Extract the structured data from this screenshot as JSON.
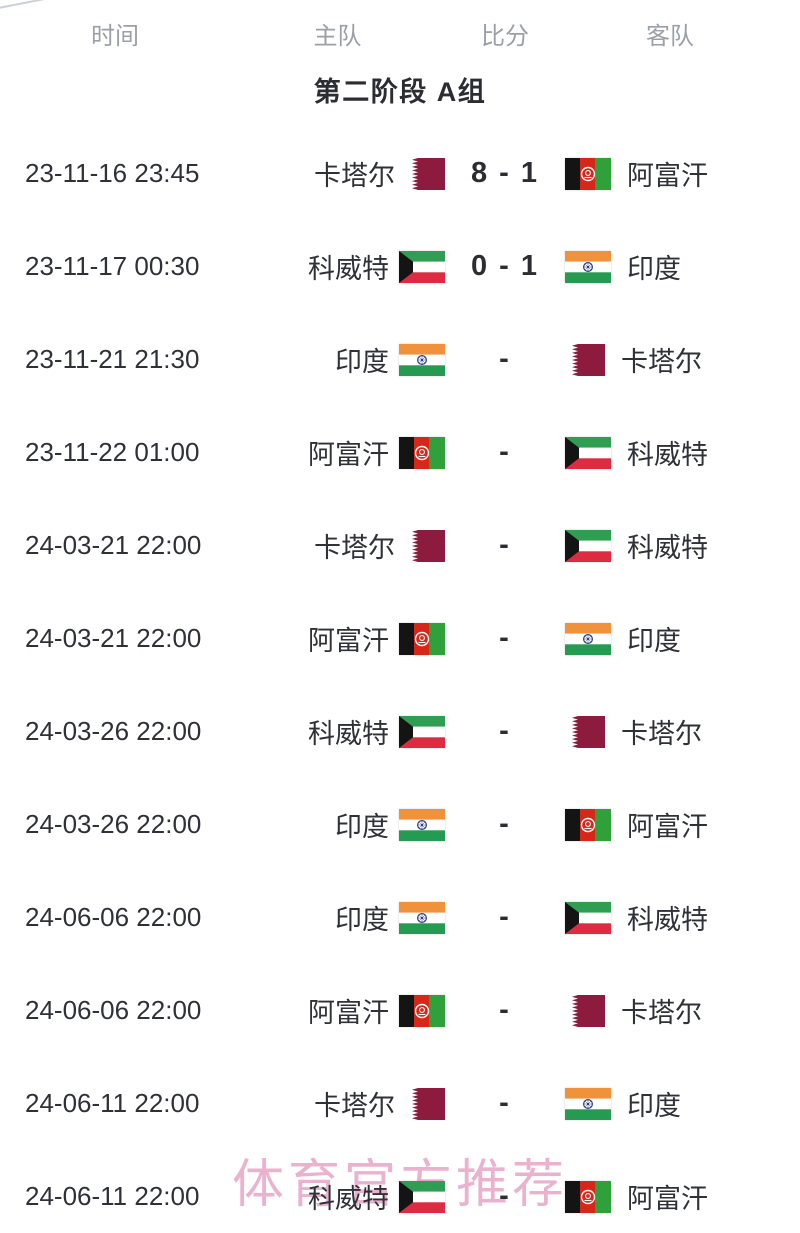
{
  "header": {
    "columns": [
      "时间",
      "主队",
      "比分",
      "客队"
    ]
  },
  "group_title": "第二阶段 A组",
  "watermark": "体育官方推荐",
  "teams": {
    "qatar": {
      "label": "卡塔尔",
      "flag": "qa"
    },
    "afghanistan": {
      "label": "阿富汗",
      "flag": "af"
    },
    "kuwait": {
      "label": "科威特",
      "flag": "kw"
    },
    "india": {
      "label": "印度",
      "flag": "in"
    }
  },
  "fixtures": [
    {
      "time": "23-11-16 23:45",
      "home": "qatar",
      "away": "afghanistan",
      "score": "8 - 1",
      "played": true
    },
    {
      "time": "23-11-17 00:30",
      "home": "kuwait",
      "away": "india",
      "score": "0 - 1",
      "played": true
    },
    {
      "time": "23-11-21 21:30",
      "home": "india",
      "away": "qatar",
      "score": "-",
      "played": false
    },
    {
      "time": "23-11-22 01:00",
      "home": "afghanistan",
      "away": "kuwait",
      "score": "-",
      "played": false
    },
    {
      "time": "24-03-21 22:00",
      "home": "qatar",
      "away": "kuwait",
      "score": "-",
      "played": false
    },
    {
      "time": "24-03-21 22:00",
      "home": "afghanistan",
      "away": "india",
      "score": "-",
      "played": false
    },
    {
      "time": "24-03-26 22:00",
      "home": "kuwait",
      "away": "qatar",
      "score": "-",
      "played": false
    },
    {
      "time": "24-03-26 22:00",
      "home": "india",
      "away": "afghanistan",
      "score": "-",
      "played": false
    },
    {
      "time": "24-06-06 22:00",
      "home": "india",
      "away": "kuwait",
      "score": "-",
      "played": false
    },
    {
      "time": "24-06-06 22:00",
      "home": "afghanistan",
      "away": "qatar",
      "score": "-",
      "played": false
    },
    {
      "time": "24-06-11 22:00",
      "home": "qatar",
      "away": "india",
      "score": "-",
      "played": false
    },
    {
      "time": "24-06-11 22:00",
      "home": "kuwait",
      "away": "afghanistan",
      "score": "-",
      "played": false
    }
  ],
  "colors": {
    "text_dark": "#2f3138",
    "text_gray": "#9aa0a8",
    "watermark_pink": "#e8a5c8",
    "qatar_maroon": "#8d1b3d",
    "afg_black": "#141414",
    "afg_red": "#d62718",
    "afg_green": "#2fa03a",
    "kw_green": "#2f9e52",
    "kw_red": "#dd2c42",
    "kw_black": "#141414",
    "india_saffron": "#f0913c",
    "india_white": "#ffffff",
    "india_green": "#259b52",
    "india_chakra_navy": "#2b3f8f"
  }
}
